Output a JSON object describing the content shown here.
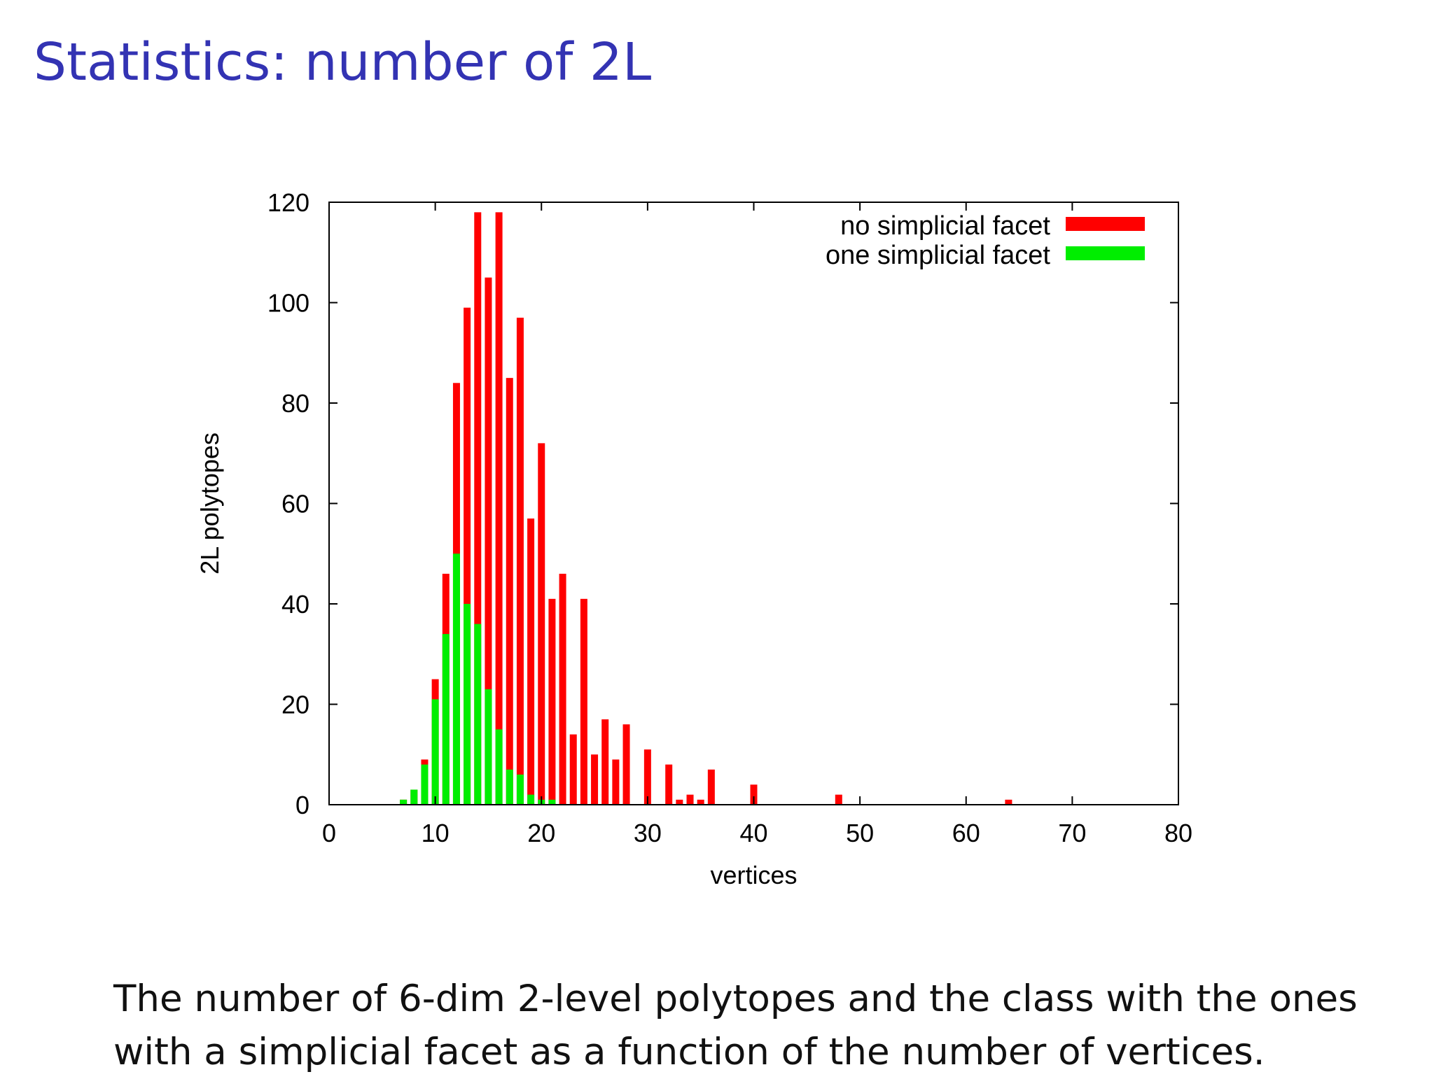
{
  "slide": {
    "title": "Statistics: number of 2L",
    "caption_line1": "The number of 6-dim 2-level polytopes and the class with the ones",
    "caption_line2": "with a simplicial facet as a function of the number of vertices."
  },
  "chart_data": {
    "type": "bar",
    "stacked": false,
    "xlabel": "vertices",
    "ylabel": "2L polytopes",
    "xlim": [
      0,
      80
    ],
    "ylim": [
      0,
      120
    ],
    "x_ticks": [
      0,
      10,
      20,
      30,
      40,
      50,
      60,
      70,
      80
    ],
    "y_ticks": [
      0,
      20,
      40,
      60,
      80,
      100,
      120
    ],
    "grid": false,
    "legend_position": "top-right",
    "x": [
      7,
      8,
      9,
      10,
      11,
      12,
      13,
      14,
      15,
      16,
      17,
      18,
      19,
      20,
      21,
      22,
      23,
      24,
      25,
      26,
      27,
      28,
      30,
      32,
      33,
      34,
      35,
      36,
      40,
      48,
      64
    ],
    "series": [
      {
        "name": "no simplicial facet",
        "color": "#ff0000",
        "values": [
          1,
          3,
          9,
          25,
          46,
          84,
          99,
          118,
          105,
          118,
          85,
          97,
          57,
          72,
          41,
          46,
          14,
          41,
          10,
          17,
          9,
          16,
          11,
          8,
          1,
          2,
          1,
          7,
          4,
          2,
          1
        ]
      },
      {
        "name": "one simplicial facet",
        "color": "#00ee00",
        "values": [
          1,
          3,
          8,
          21,
          34,
          50,
          40,
          36,
          23,
          15,
          7,
          6,
          2,
          1,
          1,
          0,
          0,
          0,
          0,
          0,
          0,
          0,
          0,
          0,
          0,
          0,
          0,
          0,
          0,
          0,
          0
        ]
      }
    ]
  }
}
